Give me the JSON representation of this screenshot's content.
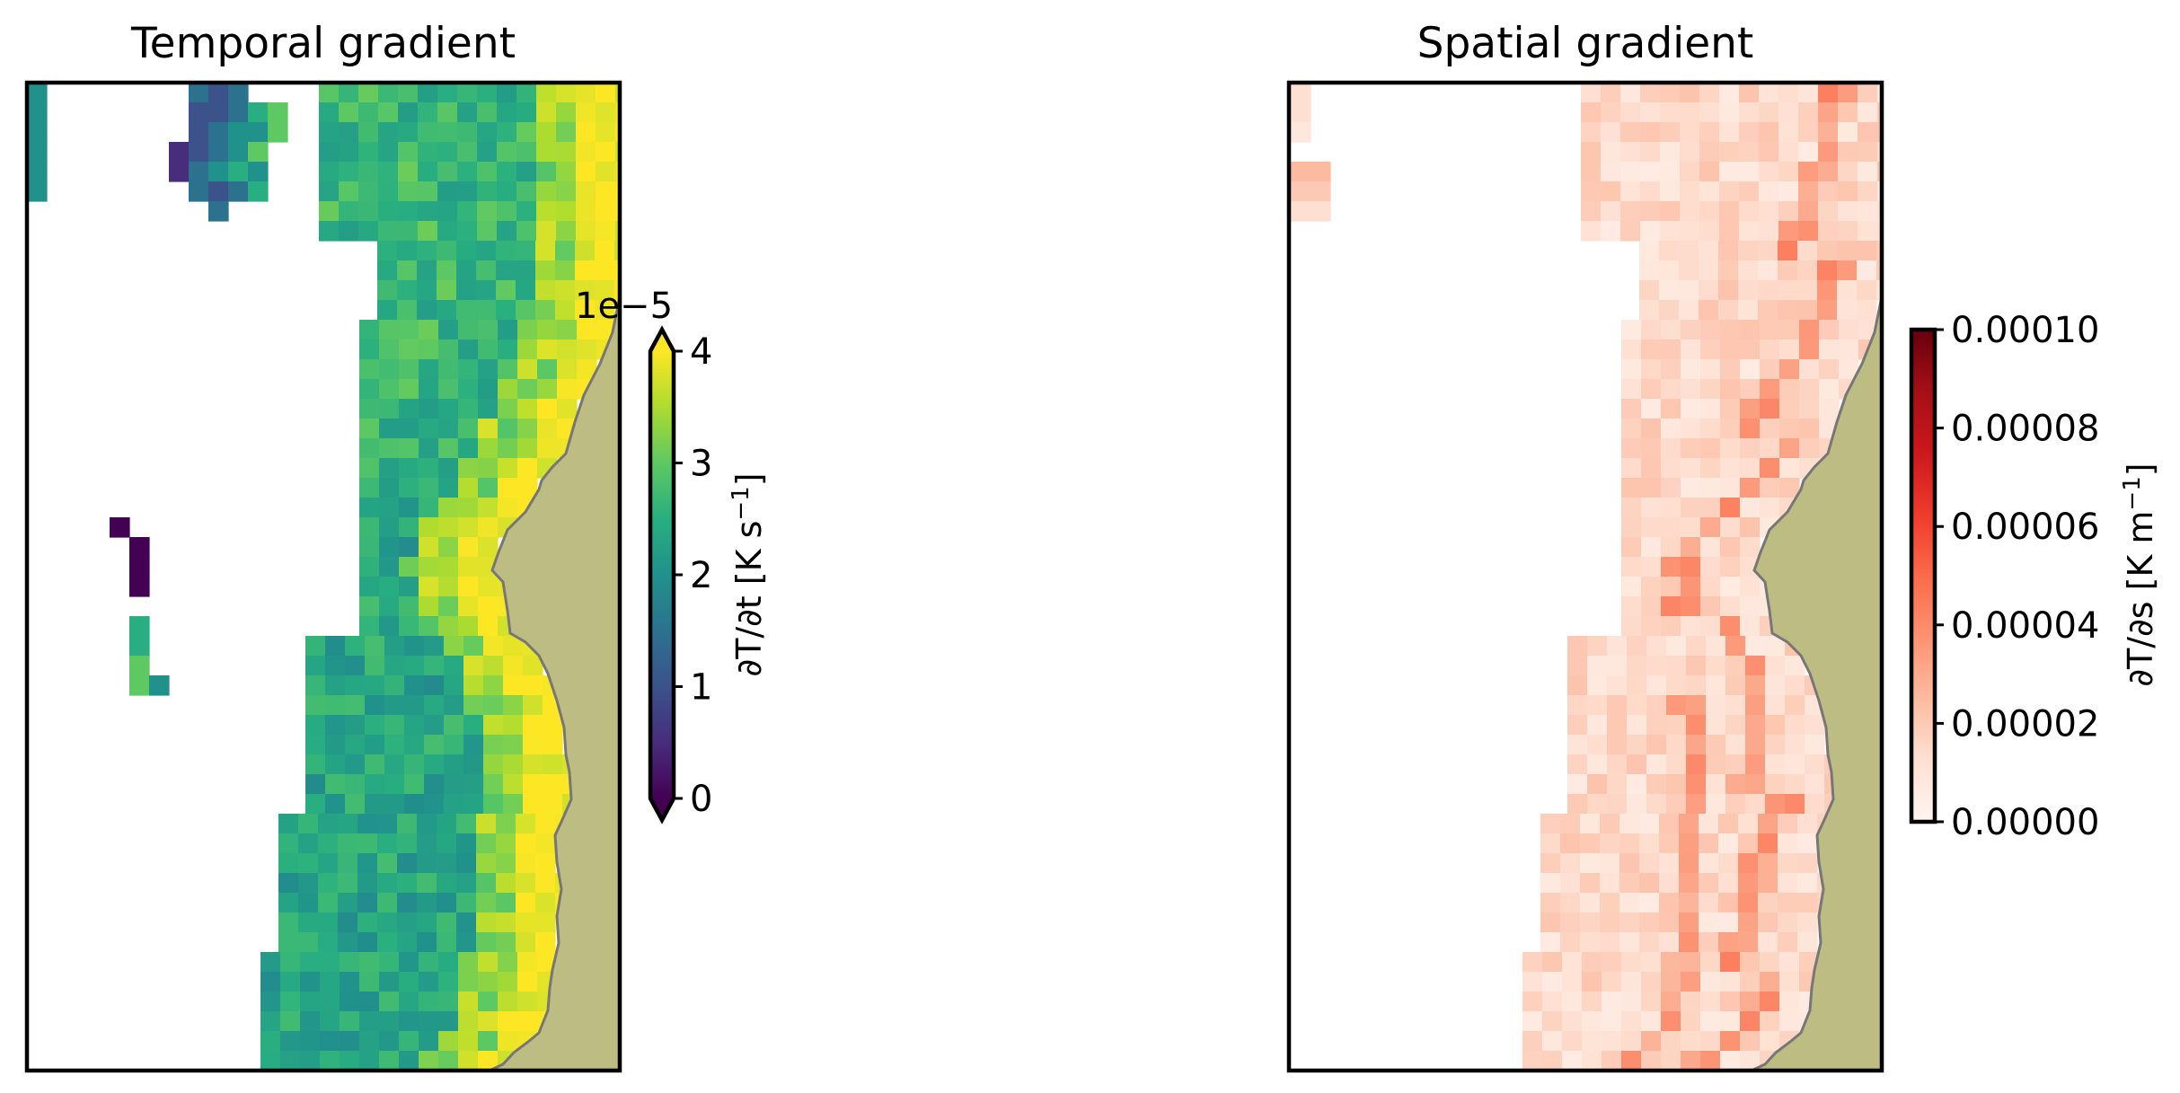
{
  "chart_data": [
    {
      "type": "heatmap",
      "title": "Temporal gradient",
      "colormap": "viridis",
      "colorbar": {
        "label": "∂T/∂t [K s⁻¹]",
        "label_text": "∂T/∂t [K s",
        "label_exp": "−1",
        "label_close": "]",
        "offset_text": "1e−5",
        "ticks": [
          0,
          1,
          2,
          3,
          4
        ],
        "tick_labels": [
          "0",
          "1",
          "2",
          "3",
          "4"
        ],
        "range": [
          0,
          4
        ],
        "extend": "both",
        "scale": 1e-05
      },
      "land_color": "#bdbc82",
      "coastline_color": "#777777"
    },
    {
      "type": "heatmap",
      "title": "Spatial gradient",
      "colormap": "Reds",
      "colorbar": {
        "label": "∂T/∂s [K m⁻¹]",
        "label_text": "∂T/∂s [K m",
        "label_exp": "−1",
        "label_close": "]",
        "ticks": [
          0.0,
          2e-05,
          4e-05,
          6e-05,
          8e-05,
          0.0001
        ],
        "tick_labels": [
          "0.00000",
          "0.00002",
          "0.00004",
          "0.00006",
          "0.00008",
          "0.00010"
        ],
        "range": [
          0,
          0.0001
        ],
        "extend": "neither"
      },
      "land_color": "#bdbc82",
      "coastline_color": "#777777"
    }
  ]
}
